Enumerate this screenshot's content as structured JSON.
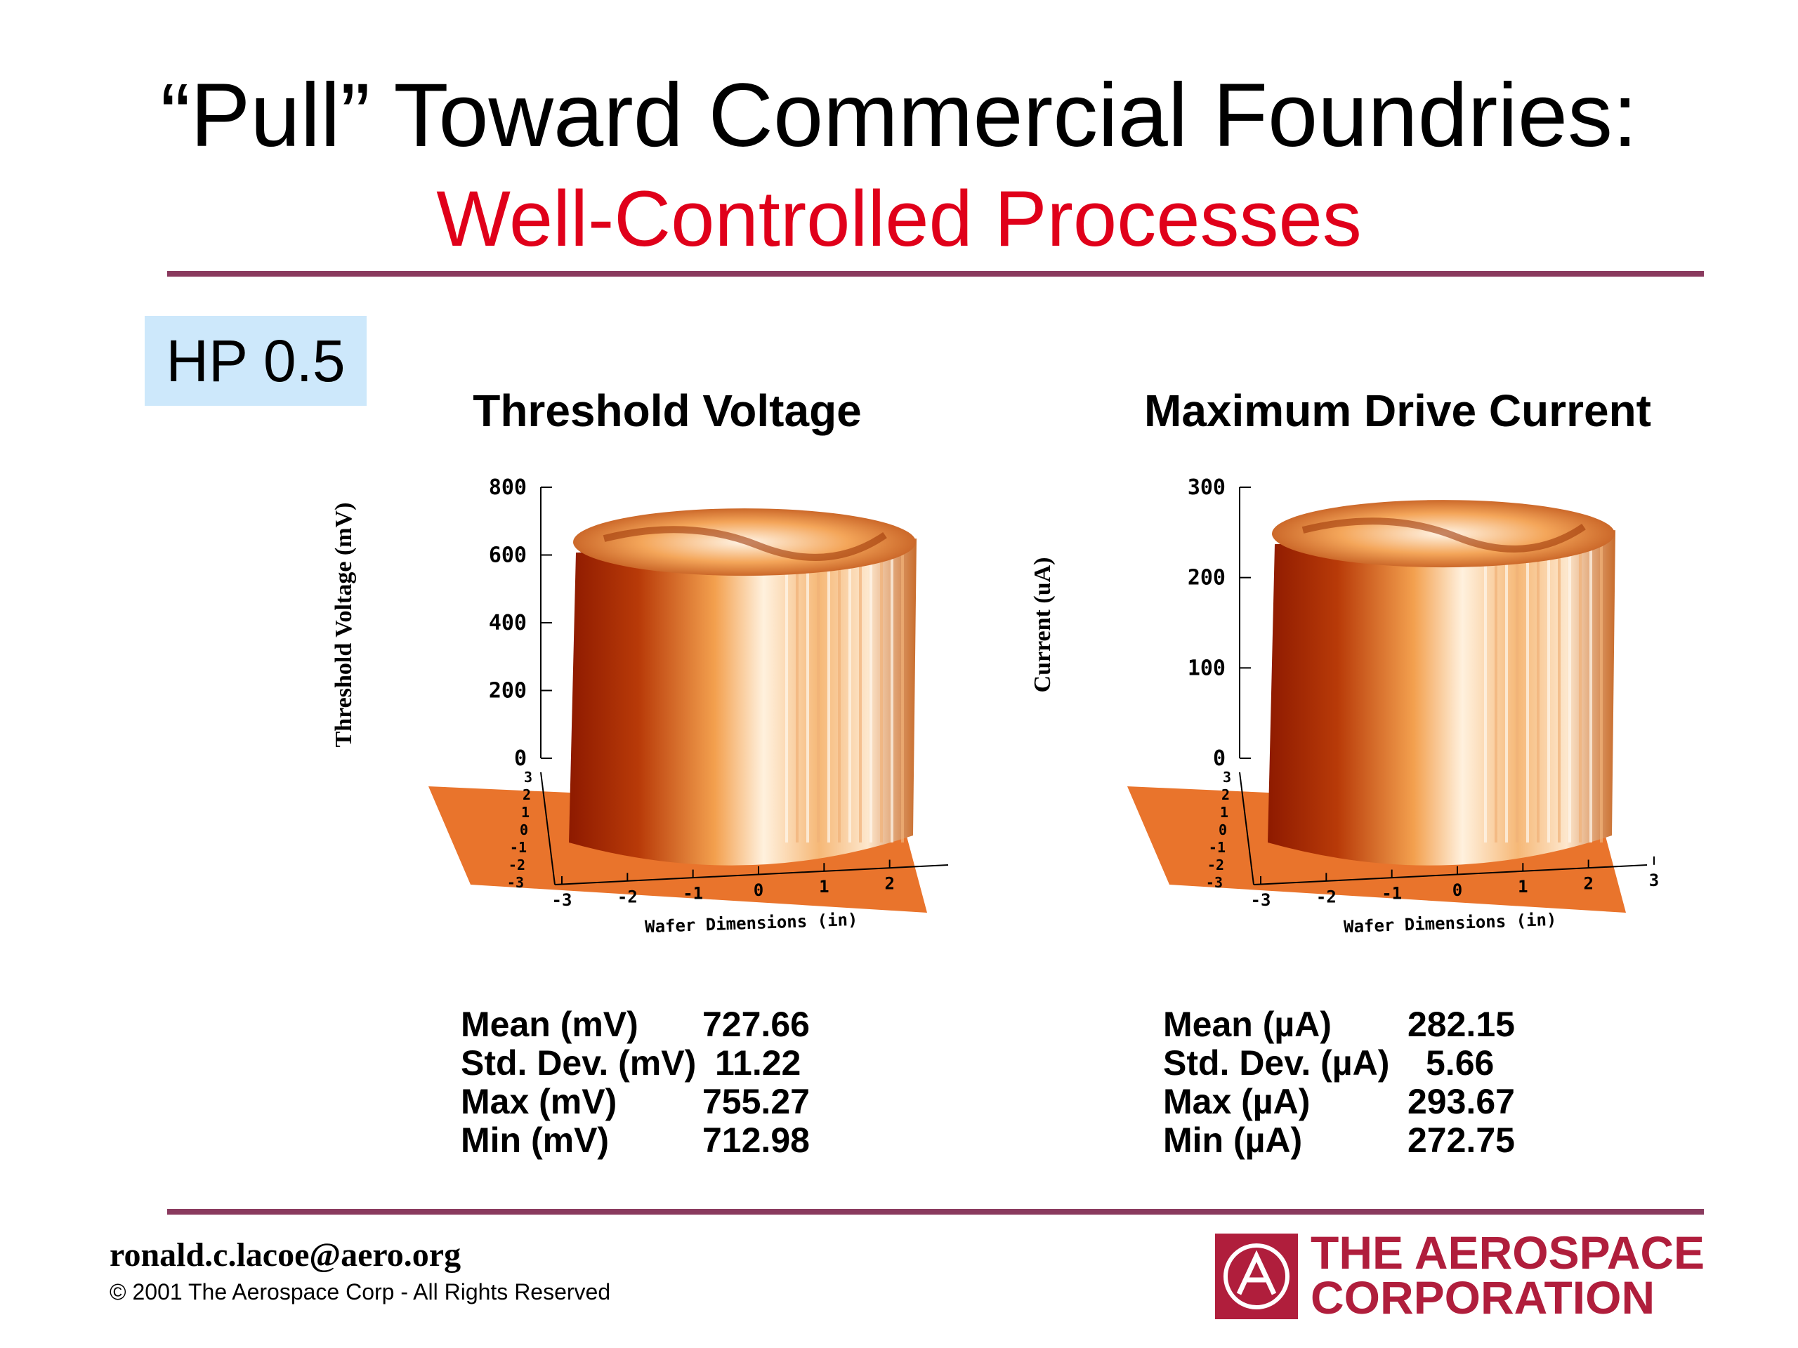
{
  "slide": {
    "title": "“Pull” Toward Commercial Foundries:",
    "subtitle": "Well-Controlled Processes",
    "badge": "HP 0.5",
    "footer": {
      "email": "ronald.c.lacoe@aero.org",
      "copyright": "© 2001 The Aerospace Corp - All Rights Reserved"
    },
    "logo": {
      "line1": "THE AEROSPACE",
      "line2": "CORPORATION"
    },
    "colors": {
      "title_accent": "#e0001a",
      "rule": "#8a3a5e",
      "badge_bg": "#cde8fb",
      "logo": "#b01e3c"
    }
  },
  "chart_data": [
    {
      "type": "surface",
      "title": "Threshold Voltage",
      "zlabel": "Threshold Voltage (mV)",
      "xlabel": "Wafer Dimensions (in)",
      "zlim": [
        0,
        800
      ],
      "z_ticks": [
        "800",
        "600",
        "400",
        "200",
        "0"
      ],
      "x_ticks": [
        "-3",
        "-2",
        "-1",
        "0",
        "1",
        "2"
      ],
      "y_ticks": [
        "3",
        "2",
        "1",
        "0",
        "-1",
        "-2",
        "-3"
      ],
      "surface_level": 727.66,
      "stats": [
        {
          "label": "Mean (mV)",
          "value": "727.66"
        },
        {
          "label": "Std. Dev. (mV)",
          "value": "11.22"
        },
        {
          "label": "Max (mV)",
          "value": "755.27"
        },
        {
          "label": "Min (mV)",
          "value": "712.98"
        }
      ]
    },
    {
      "type": "surface",
      "title": "Maximum Drive Current",
      "zlabel": "Current (uA)",
      "xlabel": "Wafer Dimensions (in)",
      "zlim": [
        0,
        300
      ],
      "z_ticks": [
        "300",
        "200",
        "100",
        "0"
      ],
      "x_ticks": [
        "-3",
        "-2",
        "-1",
        "0",
        "1",
        "2",
        "3"
      ],
      "y_ticks": [
        "3",
        "2",
        "1",
        "0",
        "-1",
        "-2",
        "-3"
      ],
      "surface_level": 282.15,
      "stats": [
        {
          "label": "Mean (µA)",
          "value": "282.15"
        },
        {
          "label": "Std. Dev. (µA)",
          "value": "5.66"
        },
        {
          "label": "Max (µA)",
          "value": "293.67"
        },
        {
          "label": "Min (µA)",
          "value": "272.75"
        }
      ]
    }
  ]
}
